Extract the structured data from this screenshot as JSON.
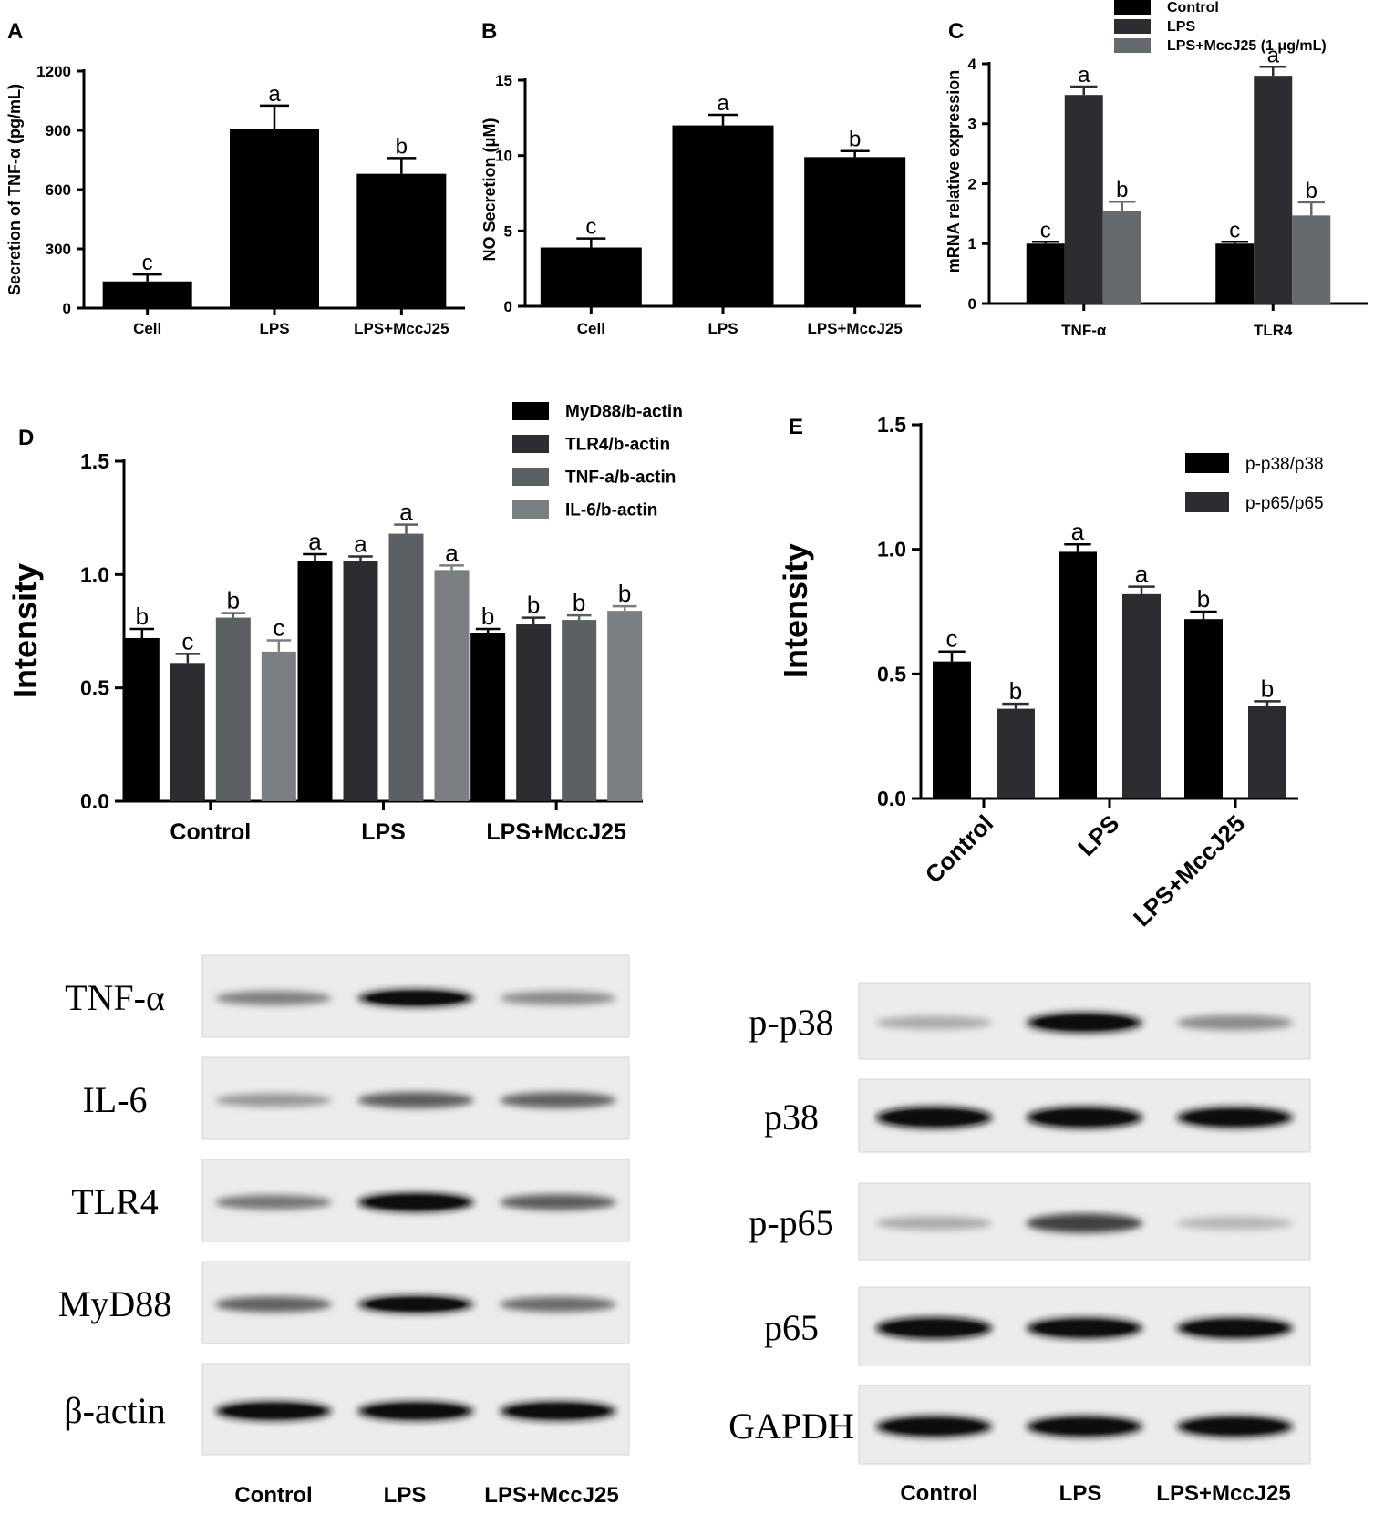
{
  "figure": {
    "panel_labels": [
      "A",
      "B",
      "C",
      "D",
      "E"
    ]
  },
  "chart_data": [
    {
      "panel": "A",
      "type": "bar",
      "categories": [
        "Cell",
        "LPS",
        "LPS+MccJ25"
      ],
      "values": [
        135,
        905,
        680
      ],
      "errors": [
        35,
        120,
        80
      ],
      "letters": [
        "c",
        "a",
        "b"
      ],
      "ylabel": "Secretion of TNF-α (pg/mL)",
      "xlabel": "",
      "ylim": [
        0,
        1200
      ],
      "yticks": [
        0,
        300,
        600,
        900,
        1200
      ],
      "ytick_labels": [
        "0",
        "300",
        "600",
        "900",
        "1200"
      ],
      "color": "#000000"
    },
    {
      "panel": "B",
      "type": "bar",
      "categories": [
        "Cell",
        "LPS",
        "LPS+MccJ25"
      ],
      "values": [
        3.9,
        12.0,
        9.9
      ],
      "errors": [
        0.6,
        0.7,
        0.4
      ],
      "letters": [
        "c",
        "a",
        "b"
      ],
      "ylabel": "NO Secretion (μM)",
      "xlabel": "",
      "ylim": [
        0,
        15
      ],
      "yticks": [
        0,
        5,
        10,
        15
      ],
      "ytick_labels": [
        "0",
        "5",
        "10",
        "15"
      ],
      "color": "#000000"
    },
    {
      "panel": "C",
      "type": "bar",
      "categories": [
        "TNF-α",
        "TLR4"
      ],
      "series": [
        {
          "name": "Control",
          "values": [
            1.0,
            1.0
          ],
          "errors": [
            0.03,
            0.03
          ],
          "letters": [
            "c",
            "c"
          ],
          "color": "#000000"
        },
        {
          "name": "LPS",
          "values": [
            3.48,
            3.8
          ],
          "errors": [
            0.14,
            0.15
          ],
          "letters": [
            "a",
            "a"
          ],
          "color": "#2b2d30"
        },
        {
          "name": "LPS+MccJ25 (1 μg/mL)",
          "values": [
            1.55,
            1.47
          ],
          "errors": [
            0.15,
            0.22
          ],
          "letters": [
            "b",
            "b"
          ],
          "color": "#666a6e"
        }
      ],
      "ylabel": "mRNA relative expression",
      "xlabel": "",
      "ylim": [
        0,
        4.2
      ],
      "yticks": [
        0,
        1,
        2,
        3,
        4
      ],
      "ytick_labels": [
        "0",
        "1",
        "2",
        "3",
        "4"
      ],
      "legend_position": "top"
    },
    {
      "panel": "D",
      "type": "bar",
      "categories": [
        "Control",
        "LPS",
        "LPS+MccJ25"
      ],
      "series": [
        {
          "name": "MyD88/b-actin",
          "values": [
            0.72,
            1.06,
            0.74
          ],
          "errors": [
            0.04,
            0.03,
            0.02
          ],
          "letters": [
            "b",
            "a",
            "b"
          ],
          "color": "#000000"
        },
        {
          "name": "TLR4/b-actin",
          "values": [
            0.61,
            1.06,
            0.78
          ],
          "errors": [
            0.04,
            0.02,
            0.03
          ],
          "letters": [
            "c",
            "a",
            "b"
          ],
          "color": "#2b2d30"
        },
        {
          "name": "TNF-a/b-actin",
          "values": [
            0.81,
            1.18,
            0.8
          ],
          "errors": [
            0.02,
            0.04,
            0.02
          ],
          "letters": [
            "b",
            "a",
            "b"
          ],
          "color": "#5c6064"
        },
        {
          "name": "IL-6/b-actin",
          "values": [
            0.66,
            1.02,
            0.84
          ],
          "errors": [
            0.05,
            0.02,
            0.02
          ],
          "letters": [
            "c",
            "a",
            "b"
          ],
          "color": "#7b7f83"
        }
      ],
      "ylabel": "Intensity",
      "xlabel": "",
      "ylim": [
        0,
        1.5
      ],
      "yticks": [
        0,
        0.5,
        1.0,
        1.5
      ],
      "ytick_labels": [
        "0.0",
        "0.5",
        "1.0",
        "1.5"
      ],
      "legend_position": "top-right"
    },
    {
      "panel": "E",
      "type": "bar",
      "categories": [
        "Control",
        "LPS",
        "LPS+MccJ25"
      ],
      "series": [
        {
          "name": "p-p38/p38",
          "values": [
            0.55,
            0.99,
            0.72
          ],
          "errors": [
            0.04,
            0.03,
            0.03
          ],
          "letters": [
            "c",
            "a",
            "b"
          ],
          "color": "#000000"
        },
        {
          "name": "p-p65/p65",
          "values": [
            0.36,
            0.82,
            0.37
          ],
          "errors": [
            0.02,
            0.03,
            0.02
          ],
          "letters": [
            "b",
            "a",
            "b"
          ],
          "color": "#2b2d30"
        }
      ],
      "ylabel": "Intensity",
      "xlabel": "",
      "ylim": [
        0,
        1.5
      ],
      "yticks": [
        0,
        0.5,
        1.0,
        1.5
      ],
      "ytick_labels": [
        "0.0",
        "0.5",
        "1.0",
        "1.5"
      ],
      "legend_position": "top-right",
      "xtick_rotation": "rotated"
    }
  ],
  "blots": [
    {
      "panel": "D",
      "rows": [
        {
          "label": "TNF-α",
          "intensity": [
            0.45,
            0.85,
            0.4
          ]
        },
        {
          "label": "IL-6",
          "intensity": [
            0.35,
            0.62,
            0.6
          ]
        },
        {
          "label": "TLR4",
          "intensity": [
            0.5,
            0.95,
            0.62
          ]
        },
        {
          "label": "MyD88",
          "intensity": [
            0.6,
            0.85,
            0.55
          ]
        },
        {
          "label": "β-actin",
          "intensity": [
            0.95,
            0.95,
            0.95
          ]
        }
      ],
      "lanes": [
        "Control",
        "LPS",
        "LPS+MccJ25"
      ]
    },
    {
      "panel": "E",
      "rows": [
        {
          "label": "p-p38",
          "intensity": [
            0.25,
            0.9,
            0.4
          ]
        },
        {
          "label": "p38",
          "intensity": [
            0.98,
            0.98,
            0.95
          ]
        },
        {
          "label": "p-p65",
          "intensity": [
            0.25,
            0.75,
            0.2
          ]
        },
        {
          "label": "p65",
          "intensity": [
            1.0,
            0.95,
            0.95
          ]
        },
        {
          "label": "GAPDH",
          "intensity": [
            0.95,
            0.95,
            0.95
          ]
        }
      ],
      "lanes": [
        "Control",
        "LPS",
        "LPS+MccJ25"
      ]
    }
  ]
}
